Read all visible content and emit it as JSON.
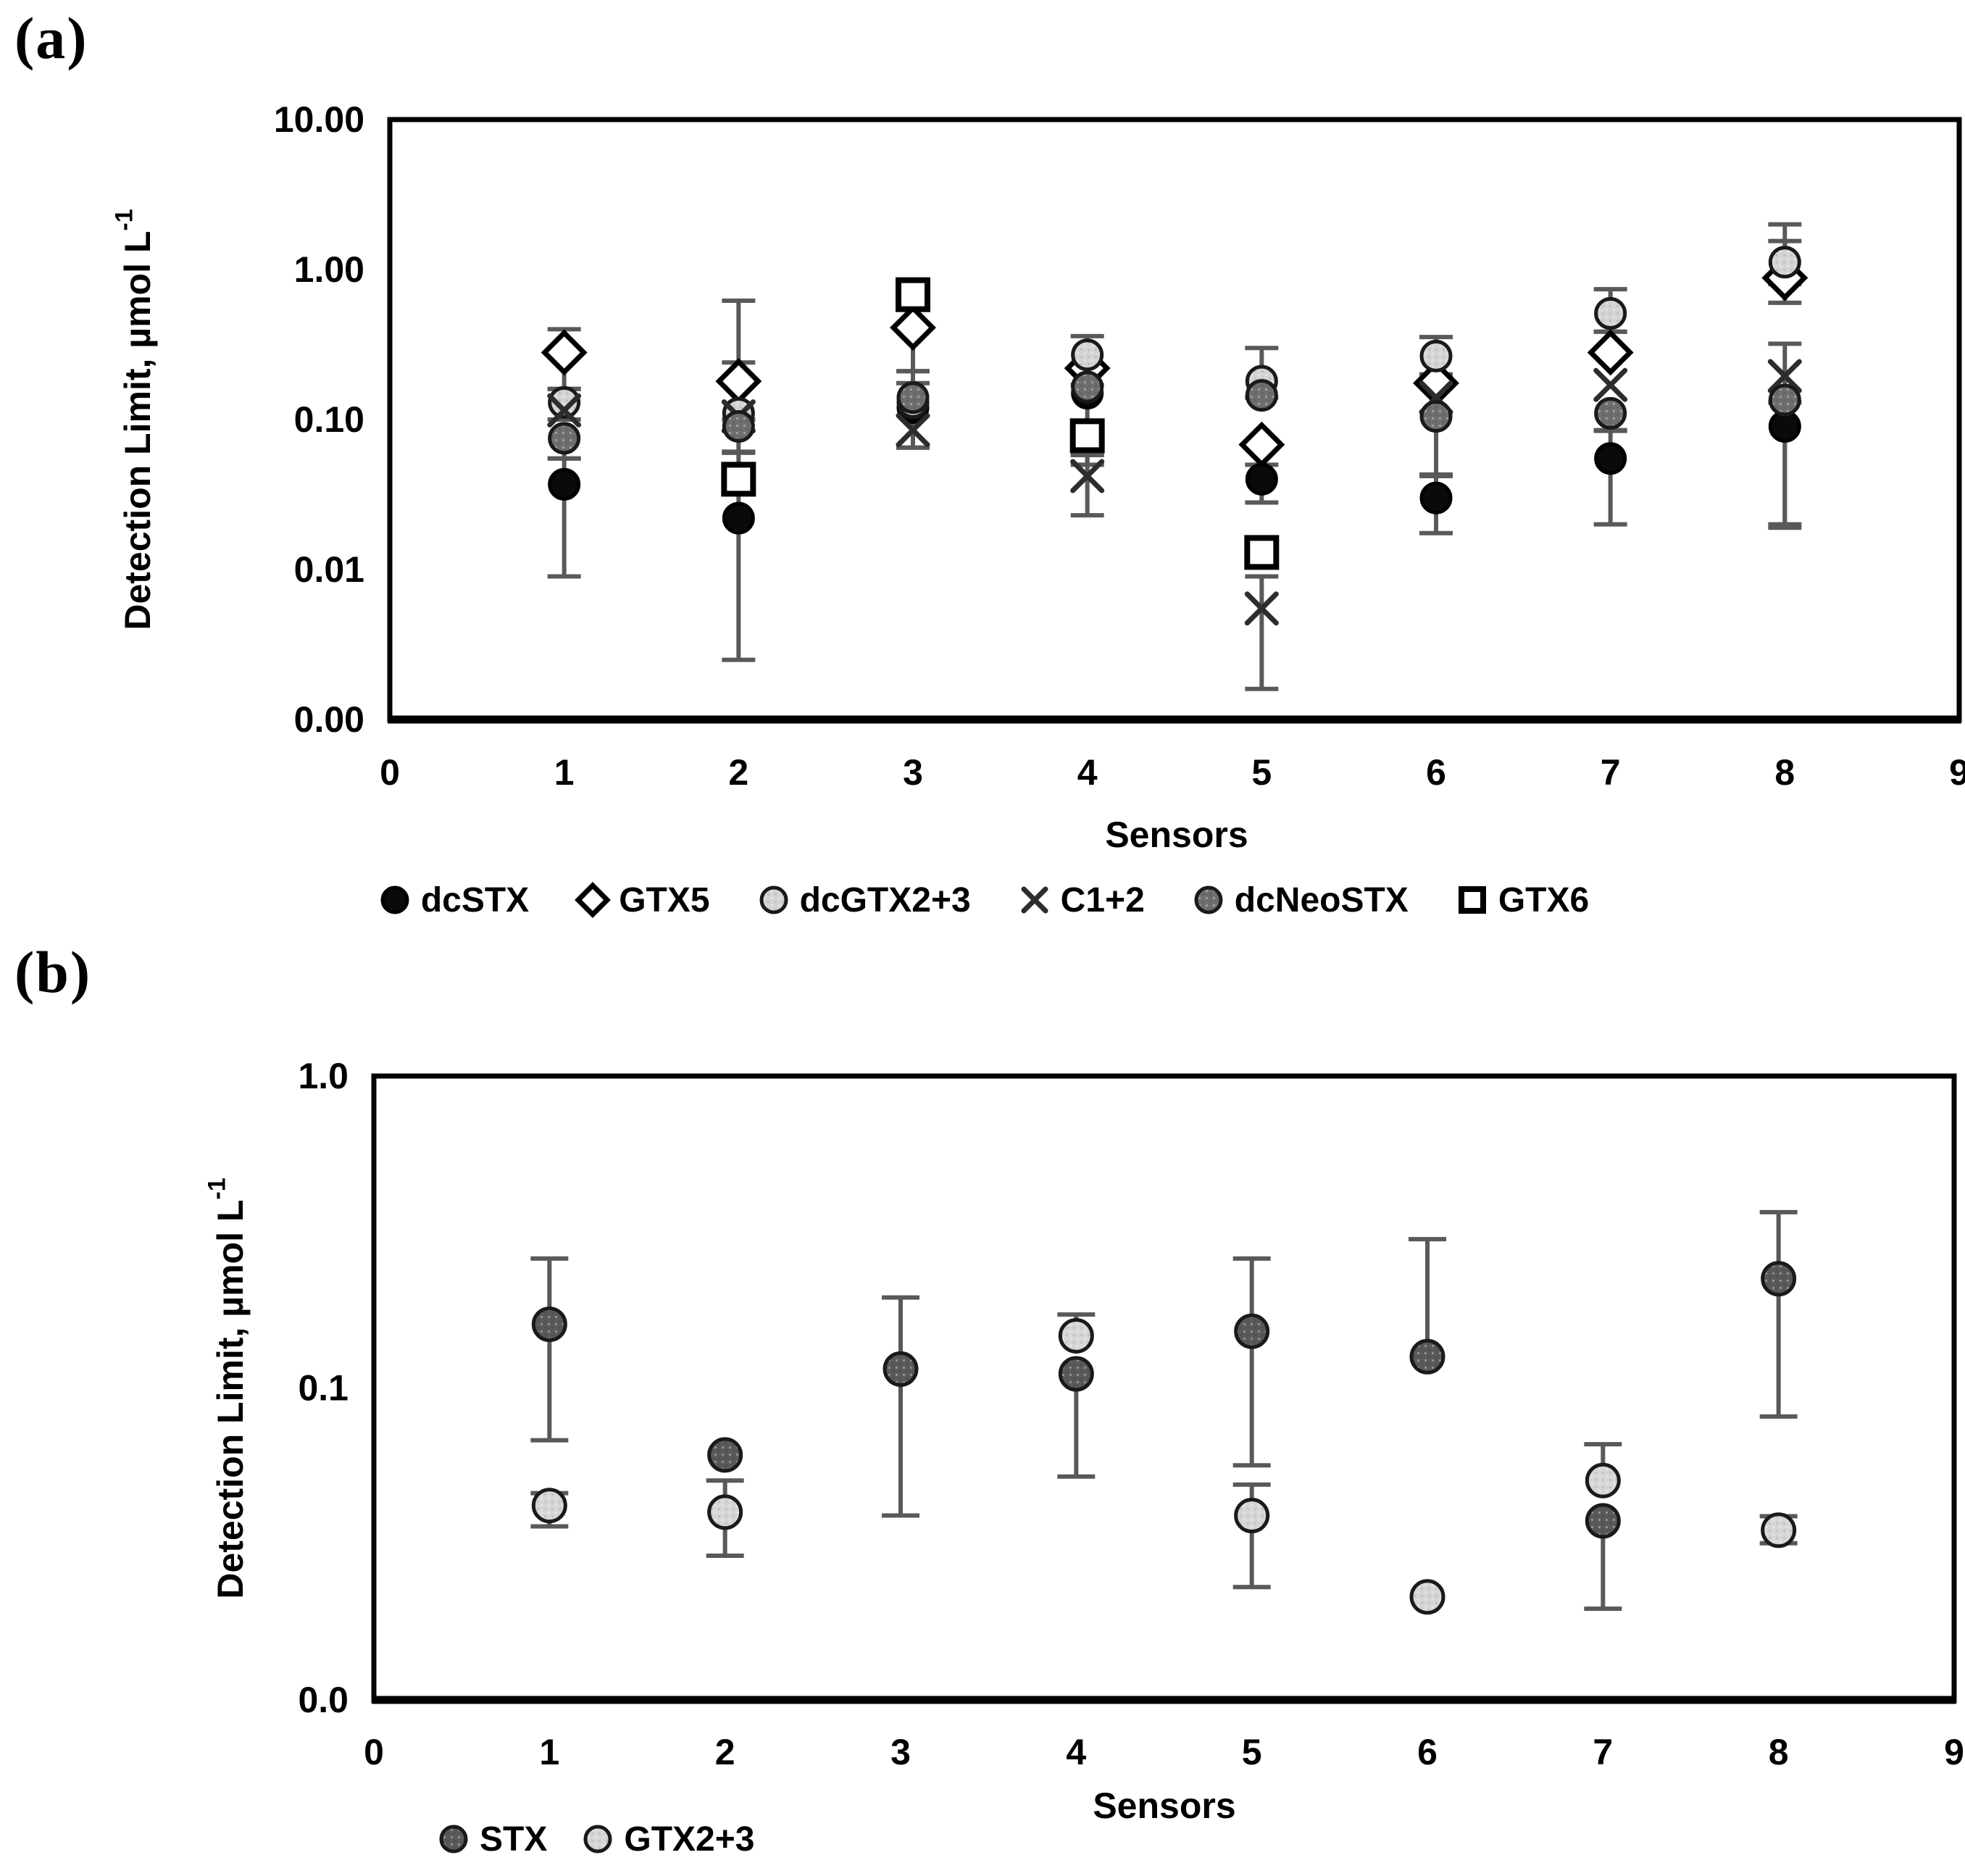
{
  "figure": {
    "panel_a_label": "(a)",
    "panel_b_label": "(b)"
  },
  "chart_data": [
    {
      "id": "a",
      "type": "scatter",
      "title": "",
      "xlabel": "Sensors",
      "ylabel": "Detection Limit, µmol L",
      "ylabel_sup": "-1",
      "x_ticks": [
        "0",
        "1",
        "2",
        "3",
        "4",
        "5",
        "6",
        "7",
        "8",
        "9"
      ],
      "y_ticks": [
        {
          "value": 10,
          "label": "10.00"
        },
        {
          "value": 1,
          "label": "1.00"
        },
        {
          "value": 0.1,
          "label": "0.10"
        },
        {
          "value": 0.01,
          "label": "0.01"
        },
        {
          "value": 0.001,
          "label": "0.00"
        }
      ],
      "xlim": [
        0,
        9
      ],
      "ylim": [
        0.001,
        10
      ],
      "y_scale": "log",
      "grid": false,
      "legend_position": "bottom-center",
      "axis_color": "#000000",
      "error_bar_color": "#595959",
      "series": [
        {
          "name": "dcSTX",
          "marker": "circle",
          "fill": "#0a0a0a",
          "stroke": "#000000",
          "points": [
            {
              "x": 1,
              "y": 0.037,
              "lo": 0.009,
              "hi": 0.055
            },
            {
              "x": 2,
              "y": 0.022,
              "lo": 0.0025,
              "hi": 0.06
            },
            {
              "x": 3,
              "y": 0.12,
              "lo": 0.065,
              "hi": 0.175
            },
            {
              "x": 4,
              "y": 0.15
            },
            {
              "x": 5,
              "y": 0.04,
              "lo": 0.028,
              "hi": 0.05
            },
            {
              "x": 6,
              "y": 0.03,
              "lo": 0.0175,
              "hi": 0.042
            },
            {
              "x": 7,
              "y": 0.055,
              "lo": 0.02,
              "hi": 0.085
            },
            {
              "x": 8,
              "y": 0.09,
              "lo": 0.02,
              "hi": 0.13
            }
          ]
        },
        {
          "name": "GTX5",
          "marker": "diamond",
          "fill": "#ffffff",
          "stroke": "#000000",
          "points": [
            {
              "x": 1,
              "y": 0.28,
              "lo": 0.16,
              "hi": 0.4
            },
            {
              "x": 2,
              "y": 0.18,
              "lo": 0.1,
              "hi": 0.62
            },
            {
              "x": 3,
              "y": 0.41,
              "lo": 0.21,
              "hi": 0.55
            },
            {
              "x": 4,
              "y": 0.22
            },
            {
              "x": 5,
              "y": 0.068
            },
            {
              "x": 6,
              "y": 0.175
            },
            {
              "x": 7,
              "y": 0.28,
              "hi": 0.385
            },
            {
              "x": 8,
              "y": 0.88,
              "lo": 0.6,
              "hi": 1.55
            }
          ]
        },
        {
          "name": "dcGTX2+3",
          "marker": "circle",
          "fill": "#d4d4d4",
          "stroke": "#1a1a1a",
          "points": [
            {
              "x": 1,
              "y": 0.13,
              "lo": 0.1,
              "hi": 0.16
            },
            {
              "x": 2,
              "y": 0.11,
              "hi": 0.24
            },
            {
              "x": 3,
              "y": 0.13
            },
            {
              "x": 4,
              "y": 0.27,
              "lo": 0.17,
              "hi": 0.36
            },
            {
              "x": 5,
              "y": 0.18,
              "lo": 0.14,
              "hi": 0.3
            },
            {
              "x": 6,
              "y": 0.265,
              "lo": 0.2,
              "hi": 0.355
            },
            {
              "x": 7,
              "y": 0.51,
              "lo": 0.385,
              "hi": 0.74
            },
            {
              "x": 8,
              "y": 1.12,
              "lo": 0.8,
              "hi": 2.0
            }
          ]
        },
        {
          "name": "C1+2",
          "marker": "x",
          "fill": "none",
          "stroke": "#2d2d2d",
          "points": [
            {
              "x": 1,
              "y": 0.115
            },
            {
              "x": 2,
              "y": 0.105
            },
            {
              "x": 3,
              "y": 0.085,
              "lo": 0.065
            },
            {
              "x": 4,
              "y": 0.042,
              "lo": 0.023,
              "hi": 0.058
            },
            {
              "x": 5,
              "y": 0.0055,
              "lo": 0.0016,
              "hi": 0.009
            },
            {
              "x": 6,
              "y": 0.14
            },
            {
              "x": 7,
              "y": 0.17
            },
            {
              "x": 8,
              "y": 0.195,
              "lo": 0.019,
              "hi": 0.32
            }
          ]
        },
        {
          "name": "dcNeoSTX",
          "marker": "circle",
          "fill": "#6e6e6e",
          "stroke": "#1a1a1a",
          "points": [
            {
              "x": 1,
              "y": 0.075,
              "lo": 0.055
            },
            {
              "x": 2,
              "y": 0.09,
              "lo": 0.061
            },
            {
              "x": 3,
              "y": 0.14,
              "hi": 0.21
            },
            {
              "x": 4,
              "y": 0.165,
              "lo": 0.05
            },
            {
              "x": 5,
              "y": 0.145
            },
            {
              "x": 6,
              "y": 0.105,
              "lo": 0.043
            },
            {
              "x": 7,
              "y": 0.11,
              "lo": 0.084
            },
            {
              "x": 8,
              "y": 0.135
            }
          ]
        },
        {
          "name": "GTX6",
          "marker": "square",
          "fill": "#ffffff",
          "stroke": "#000000",
          "points": [
            {
              "x": 2,
              "y": 0.04
            },
            {
              "x": 3,
              "y": 0.68
            },
            {
              "x": 4,
              "y": 0.078,
              "lo": 0.058
            },
            {
              "x": 5,
              "y": 0.013
            }
          ]
        }
      ]
    },
    {
      "id": "b",
      "type": "scatter",
      "title": "",
      "xlabel": "Sensors",
      "ylabel": "Detection Limit, µmol L",
      "ylabel_sup": "-1",
      "x_ticks": [
        "0",
        "1",
        "2",
        "3",
        "4",
        "5",
        "6",
        "7",
        "8",
        "9"
      ],
      "y_ticks": [
        {
          "value": 1,
          "label": "1.0"
        },
        {
          "value": 0.1,
          "label": "0.1"
        },
        {
          "value": 0.01,
          "label": "0.0"
        }
      ],
      "xlim": [
        0,
        9
      ],
      "ylim": [
        0.01,
        1
      ],
      "y_scale": "log",
      "grid": false,
      "legend_position": "bottom-left",
      "axis_color": "#000000",
      "error_bar_color": "#595959",
      "series": [
        {
          "name": "STX",
          "marker": "circle",
          "fill": "#595959",
          "stroke": "#1a1a1a",
          "points": [
            {
              "x": 1,
              "y": 0.16,
              "lo": 0.068,
              "hi": 0.26
            },
            {
              "x": 2,
              "y": 0.061
            },
            {
              "x": 3,
              "y": 0.115,
              "lo": 0.039,
              "hi": 0.195
            },
            {
              "x": 4,
              "y": 0.111,
              "lo": 0.052
            },
            {
              "x": 5,
              "y": 0.152,
              "lo": 0.0565,
              "hi": 0.26
            },
            {
              "x": 6,
              "y": 0.126,
              "hi": 0.3
            },
            {
              "x": 7,
              "y": 0.0375,
              "lo": 0.0196
            },
            {
              "x": 8,
              "y": 0.224,
              "lo": 0.081,
              "hi": 0.366
            }
          ]
        },
        {
          "name": "GTX2+3",
          "marker": "circle",
          "fill": "#d6d6d6",
          "stroke": "#1a1a1a",
          "points": [
            {
              "x": 1,
              "y": 0.042,
              "lo": 0.036,
              "hi": 0.046
            },
            {
              "x": 2,
              "y": 0.04,
              "lo": 0.029,
              "hi": 0.0505
            },
            {
              "x": 4,
              "y": 0.147,
              "hi": 0.172
            },
            {
              "x": 5,
              "y": 0.039,
              "lo": 0.023,
              "hi": 0.049
            },
            {
              "x": 6,
              "y": 0.0214
            },
            {
              "x": 7,
              "y": 0.0505,
              "hi": 0.066
            },
            {
              "x": 8,
              "y": 0.035,
              "lo": 0.0318,
              "hi": 0.0388
            }
          ]
        }
      ]
    }
  ]
}
